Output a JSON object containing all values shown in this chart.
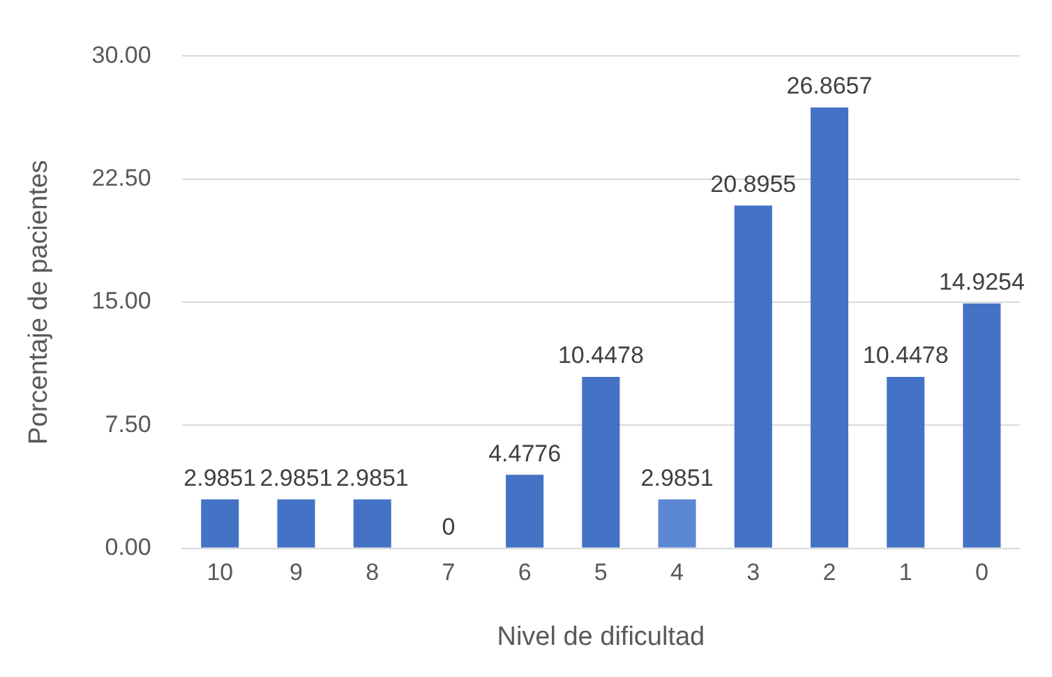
{
  "chart_data": {
    "type": "bar",
    "xlabel": "Nivel de dificultad",
    "ylabel": "Porcentaje de pacientes",
    "categories": [
      "10",
      "9",
      "8",
      "7",
      "6",
      "5",
      "4",
      "3",
      "2",
      "1",
      "0"
    ],
    "values": [
      2.9851,
      2.9851,
      2.9851,
      0,
      4.4776,
      10.4478,
      2.9851,
      20.8955,
      26.8657,
      10.4478,
      14.9254
    ],
    "colors": [
      "#4472c4",
      "#4472c4",
      "#4472c4",
      "#4472c4",
      "#4472c4",
      "#4472c4",
      "#5b87d3",
      "#4472c4",
      "#4472c4",
      "#4472c4",
      "#4472c4"
    ],
    "ylim": [
      0,
      30
    ],
    "yticks": [
      {
        "value": 0,
        "label": "0.00"
      },
      {
        "value": 7.5,
        "label": "7.50"
      },
      {
        "value": 15,
        "label": "15.00"
      },
      {
        "value": 22.5,
        "label": "22.50"
      },
      {
        "value": 30,
        "label": "30.00"
      }
    ],
    "grid": "y",
    "data_labels": true,
    "legend": false
  }
}
